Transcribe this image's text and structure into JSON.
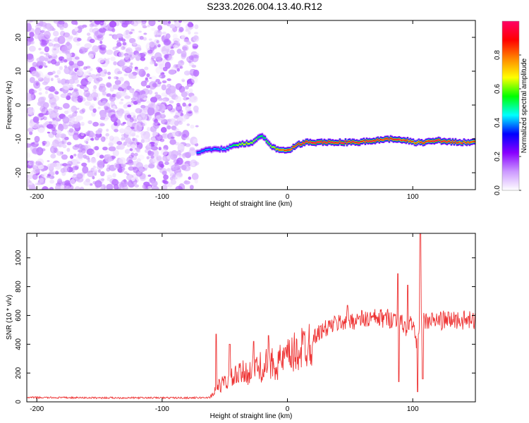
{
  "title": "S233.2026.004.13.40.R12",
  "chart_data": [
    {
      "type": "heatmap",
      "xlabel": "Height of straight line (km)",
      "ylabel": "Frequency (Hz)",
      "xlim": [
        -208,
        150
      ],
      "ylim": [
        -25,
        25
      ],
      "xticks": [
        -200,
        -100,
        0,
        100
      ],
      "yticks": [
        -20,
        -10,
        0,
        10,
        20
      ],
      "colorbar": {
        "label": "Normalized spectral amplitude",
        "range": [
          0,
          1
        ],
        "ticks": [
          "0.0",
          "0.2",
          "0.4",
          "0.6",
          "0.8"
        ],
        "colors": [
          "#ffffff",
          "#cc99ff",
          "#8800ff",
          "#0000ff",
          "#00ffff",
          "#00ff00",
          "#ffff00",
          "#ff8800",
          "#ff0000",
          "#ff0066"
        ]
      },
      "noise_region": {
        "x": [
          -208,
          -72
        ],
        "y": [
          -25,
          25
        ],
        "max_amplitude": 0.15
      },
      "signal_ridge": {
        "x": [
          -72,
          -60,
          -50,
          -42,
          -35,
          -28,
          -22,
          -18,
          -12,
          -5,
          0,
          5,
          10,
          15,
          25,
          40,
          55,
          70,
          85,
          95,
          102,
          110,
          120,
          135,
          150
        ],
        "frequency": [
          -14,
          -13,
          -13,
          -12,
          -11.5,
          -11,
          -9,
          -10,
          -12.5,
          -13.5,
          -13.5,
          -12.5,
          -11.5,
          -11,
          -11,
          -11,
          -11,
          -10.5,
          -10,
          -10.5,
          -11,
          -11,
          -10.5,
          -11,
          -11
        ],
        "peak_amplitude": [
          0.35,
          0.35,
          0.4,
          0.5,
          0.7,
          0.6,
          0.5,
          0.5,
          0.6,
          0.8,
          0.9,
          0.9,
          1.0,
          1.0,
          1.0,
          0.95,
          0.95,
          0.95,
          0.9,
          0.9,
          0.8,
          0.9,
          0.95,
          0.9,
          0.9
        ]
      }
    },
    {
      "type": "line",
      "xlabel": "Height of straight line (km)",
      "ylabel": "SNR (10 * v/v)",
      "xlim": [
        -208,
        150
      ],
      "ylim": [
        0,
        1170
      ],
      "xticks": [
        -200,
        -100,
        0,
        100
      ],
      "yticks": [
        0,
        200,
        400,
        600,
        800,
        1000
      ],
      "color": "#ee3333",
      "series": [
        {
          "x": [
            -208,
            -150,
            -75,
            -62,
            -55,
            -45,
            -35,
            -25,
            -15,
            -5,
            5,
            15,
            25,
            35,
            45,
            55,
            65,
            75,
            85,
            90,
            95,
            100,
            103,
            105,
            110,
            120,
            135,
            150
          ],
          "values": [
            30,
            28,
            28,
            30,
            110,
            160,
            200,
            230,
            260,
            280,
            330,
            400,
            480,
            530,
            560,
            570,
            575,
            580,
            580,
            560,
            500,
            570,
            380,
            550,
            560,
            565,
            570,
            560
          ]
        }
      ],
      "spikes": [
        {
          "x": -57,
          "value": 470
        },
        {
          "x": -46,
          "value": 400
        },
        {
          "x": -27,
          "value": 420
        },
        {
          "x": -15,
          "value": 460
        },
        {
          "x": 48,
          "value": 670
        },
        {
          "x": 88,
          "value": 890
        },
        {
          "x": 89,
          "value": 140
        },
        {
          "x": 96,
          "value": 810
        },
        {
          "x": 104,
          "value": 70
        },
        {
          "x": 106,
          "value": 1170
        },
        {
          "x": 108,
          "value": 160
        }
      ]
    }
  ]
}
